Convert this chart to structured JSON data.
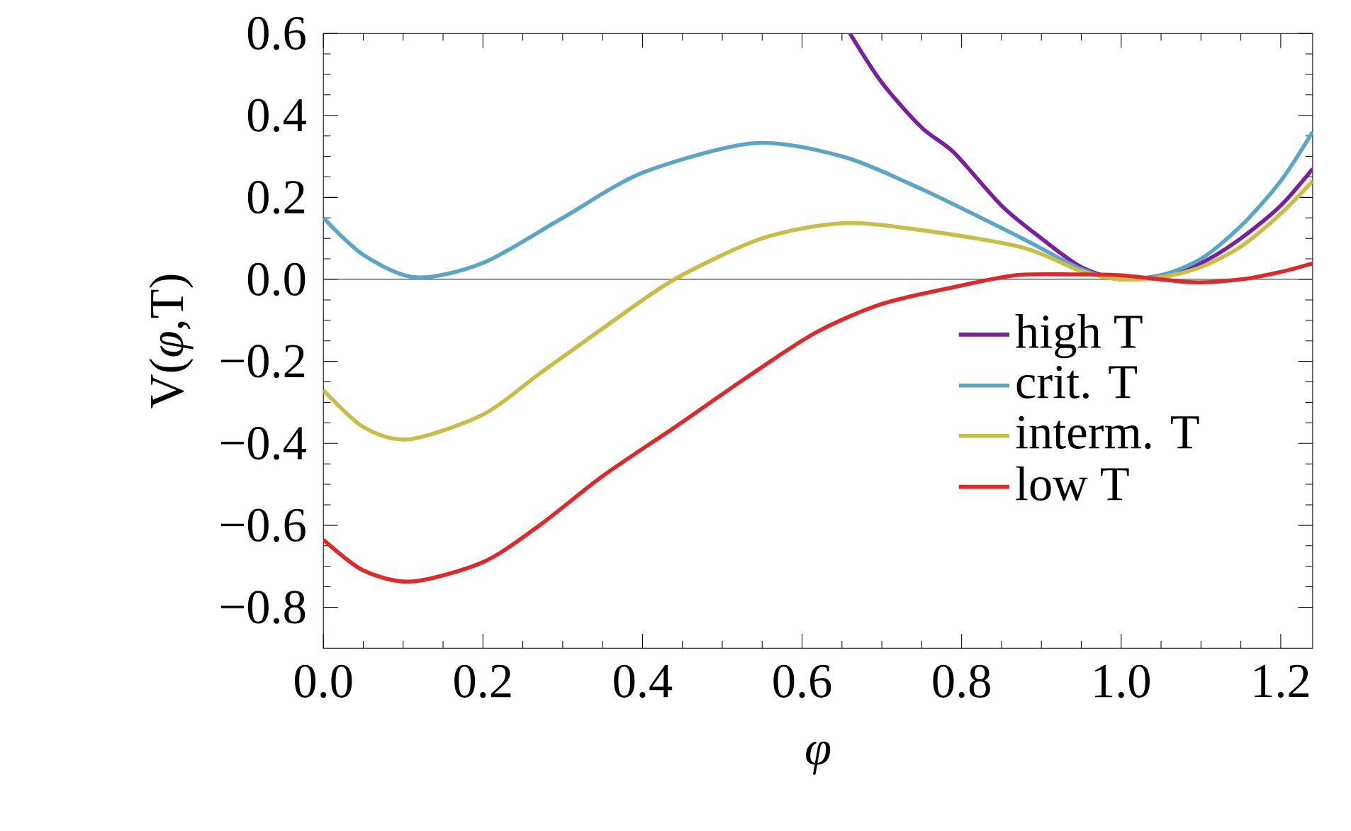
{
  "chart_data": {
    "type": "line",
    "xlabel": "φ",
    "ylabel": "V(*φ*,T)",
    "xlim": [
      0,
      1.24
    ],
    "ylim": [
      -0.9,
      0.6
    ],
    "xticks": [
      {
        "value": 0,
        "label": "0.0"
      },
      0.2,
      0.4,
      0.6,
      0.8,
      {
        "value": 1,
        "label": "1.0"
      },
      1.2
    ],
    "yticks": [
      {
        "value": -0.8,
        "label": "−0.8"
      },
      {
        "value": -0.6,
        "label": "−0.6"
      },
      {
        "value": -0.4,
        "label": "−0.4"
      },
      {
        "value": -0.2,
        "label": "−0.2"
      },
      {
        "value": 0,
        "label": "0.0"
      },
      0.2,
      0.4,
      0.6
    ],
    "grid": false,
    "legend": "right",
    "marker": "none",
    "line_style": "solid",
    "ref_lines": [
      {
        "axis": "y",
        "value": 0,
        "color": "#555555"
      }
    ],
    "series": [
      {
        "name": "high T",
        "color": "#7b1f9c",
        "x": [
          0.66,
          0.7,
          0.75,
          0.79,
          0.85,
          0.9,
          0.95,
          1.0,
          1.05,
          1.1,
          1.15,
          1.2,
          1.24
        ],
        "values": [
          0.6,
          0.48,
          0.37,
          0.31,
          0.18,
          0.1,
          0.03,
          0,
          0.01,
          0.04,
          0.1,
          0.18,
          0.27
        ]
      },
      {
        "name": "crit. T",
        "color": "#5aa5c8",
        "x": [
          0,
          0.05,
          0.116,
          0.2,
          0.3,
          0.4,
          0.539,
          0.65,
          0.75,
          0.876,
          0.95,
          1.0,
          1.05,
          1.1,
          1.15,
          1.2,
          1.24
        ],
        "values": [
          0.15,
          0.06,
          0.005,
          0.04,
          0.15,
          0.26,
          0.332,
          0.3,
          0.22,
          0.1,
          0.025,
          0,
          0.01,
          0.05,
          0.13,
          0.24,
          0.36
        ]
      },
      {
        "name": "interm. T",
        "color": "#c8be46",
        "x": [
          0,
          0.05,
          0.107,
          0.2,
          0.271,
          0.35,
          0.44,
          0.55,
          0.651,
          0.75,
          0.876,
          0.95,
          1.0,
          1.05,
          1.1,
          1.15,
          1.2,
          1.24
        ],
        "values": [
          -0.27,
          -0.36,
          -0.39,
          -0.33,
          -0.23,
          -0.12,
          0,
          0.1,
          0.137,
          0.12,
          0.078,
          0.02,
          0,
          0.005,
          0.03,
          0.08,
          0.16,
          0.24
        ]
      },
      {
        "name": "low T",
        "color": "#e0282a",
        "x": [
          0,
          0.05,
          0.111,
          0.2,
          0.271,
          0.35,
          0.444,
          0.53,
          0.617,
          0.7,
          0.79,
          0.867,
          0.94,
          1.0,
          1.09,
          1.15,
          1.2,
          1.24
        ],
        "values": [
          -0.635,
          -0.71,
          -0.737,
          -0.69,
          -0.6,
          -0.48,
          -0.356,
          -0.24,
          -0.13,
          -0.06,
          -0.019,
          0.01,
          0.012,
          0.01,
          -0.007,
          0,
          0.018,
          0.039
        ]
      }
    ]
  }
}
